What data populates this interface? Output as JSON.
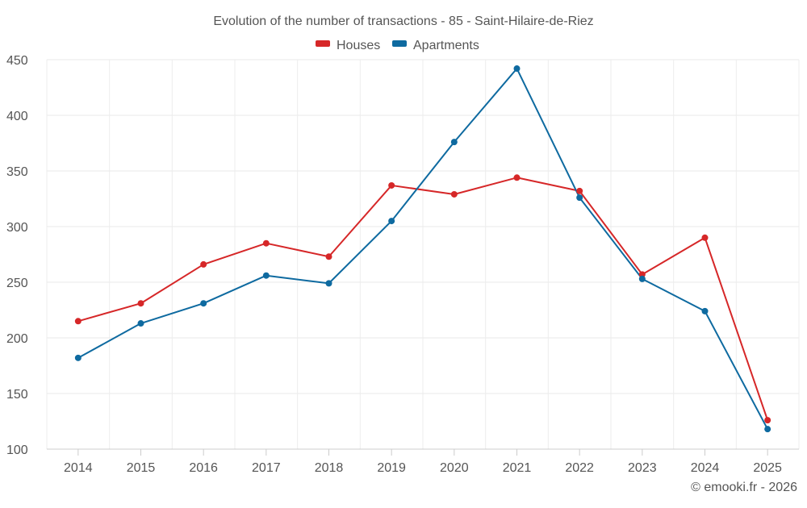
{
  "chart_data": {
    "type": "line",
    "title": "Evolution of the number of transactions - 85 - Saint-Hilaire-de-Riez",
    "xlabel": "",
    "ylabel": "",
    "categories": [
      "2014",
      "2015",
      "2016",
      "2017",
      "2018",
      "2019",
      "2020",
      "2021",
      "2022",
      "2023",
      "2024",
      "2025"
    ],
    "ylim": [
      100,
      450
    ],
    "yticks": [
      100,
      150,
      200,
      250,
      300,
      350,
      400,
      450
    ],
    "grid": true,
    "legend_position": "top-center",
    "series": [
      {
        "name": "Houses",
        "color": "#d62728",
        "values": [
          215,
          231,
          266,
          285,
          273,
          337,
          329,
          344,
          332,
          257,
          290,
          126
        ]
      },
      {
        "name": "Apartments",
        "color": "#0e6aa0",
        "values": [
          182,
          213,
          231,
          256,
          249,
          305,
          376,
          442,
          326,
          253,
          224,
          118
        ]
      }
    ]
  },
  "credit": "© emooki.fr - 2026"
}
